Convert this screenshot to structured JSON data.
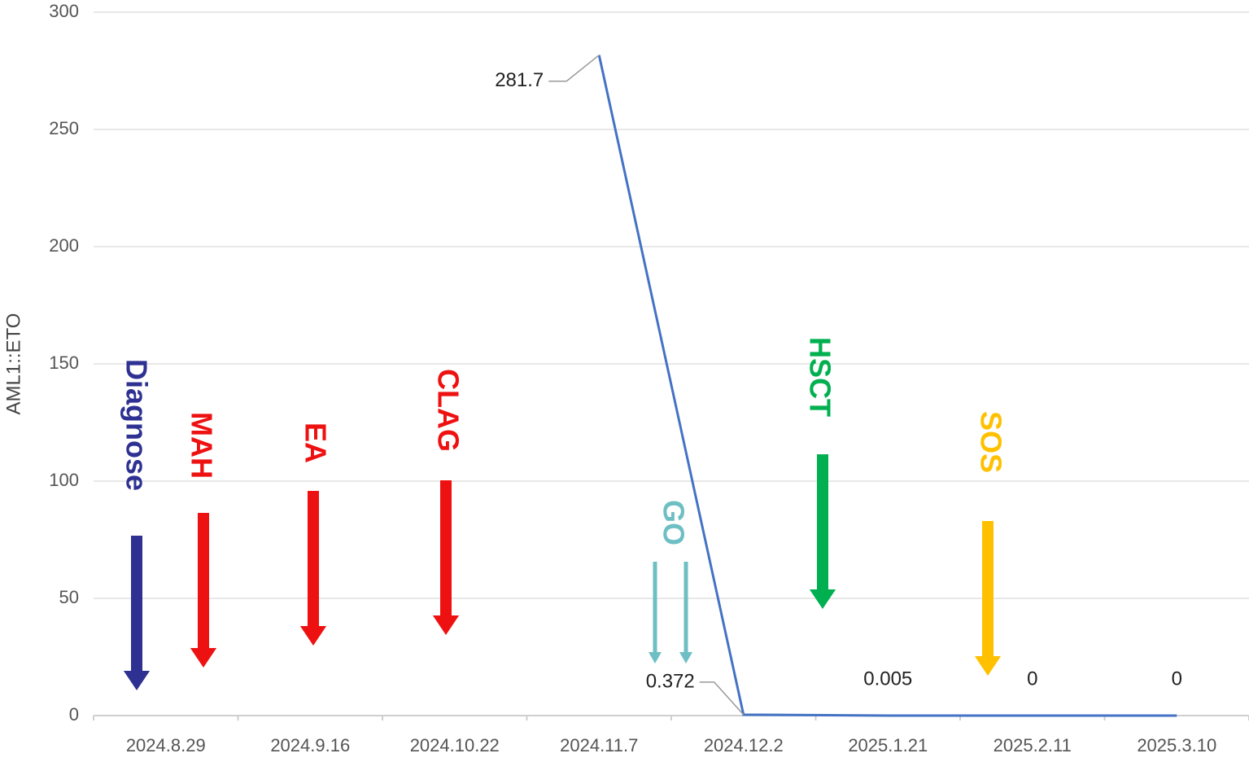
{
  "chart_data": {
    "type": "line",
    "y_label": "AML1::ETO",
    "categories": [
      "2024.8.29",
      "2024.9.16",
      "2024.10.22",
      "2024.11.7",
      "2024.12.2",
      "2025.1.21",
      "2025.2.11",
      "2025.3.10"
    ],
    "series": [
      {
        "name": "AML1::ETO",
        "color": "#4472c4",
        "values": [
          null,
          null,
          null,
          281.7,
          0.372,
          0.005,
          0,
          0
        ]
      }
    ],
    "ylim": [
      0,
      300
    ],
    "yticks": [
      0,
      50,
      100,
      150,
      200,
      250,
      300
    ],
    "grid": true,
    "annotations": [
      {
        "text": "Diagnose",
        "color": "#2e3192"
      },
      {
        "text": "MAH",
        "color": "#ee1111"
      },
      {
        "text": "EA",
        "color": "#ee1111"
      },
      {
        "text": "CLAG",
        "color": "#ee1111"
      },
      {
        "text": "GO",
        "color": "#6dbfc4"
      },
      {
        "text": "HSCT",
        "color": "#00b050"
      },
      {
        "text": "SOS",
        "color": "#ffc000"
      }
    ]
  }
}
